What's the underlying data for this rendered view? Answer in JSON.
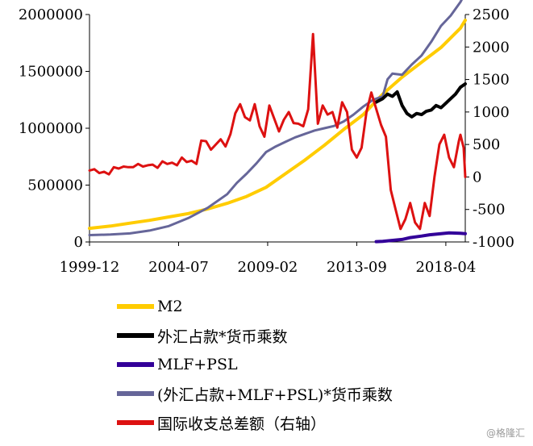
{
  "chart_data": {
    "type": "line",
    "x_ticks": [
      "1999-12",
      "2004-07",
      "2009-02",
      "2013-09",
      "2018-04"
    ],
    "x_range": [
      "1999-12",
      "2019-04"
    ],
    "y_left": {
      "range": [
        0,
        2000000
      ],
      "ticks": [
        "0",
        "500000",
        "1000000",
        "1500000",
        "2000000"
      ]
    },
    "y_right": {
      "range": [
        -1000,
        2500
      ],
      "ticks": [
        "-1000",
        "-500",
        "0",
        "500",
        "1000",
        "1500",
        "2000",
        "2500"
      ]
    },
    "grid": false,
    "legend_position": "bottom",
    "series": [
      {
        "name": "M2",
        "color": "#FFCC00",
        "axis": "left",
        "x": [
          "1999-12",
          "2001-01",
          "2002-01",
          "2003-01",
          "2004-01",
          "2005-01",
          "2006-01",
          "2007-01",
          "2008-01",
          "2009-01",
          "2010-01",
          "2011-01",
          "2012-01",
          "2013-01",
          "2014-01",
          "2015-01",
          "2016-01",
          "2017-01",
          "2018-01",
          "2019-01",
          "2019-04"
        ],
        "values": [
          120000,
          140000,
          165000,
          190000,
          220000,
          250000,
          290000,
          340000,
          400000,
          480000,
          600000,
          720000,
          850000,
          990000,
          1120000,
          1300000,
          1450000,
          1580000,
          1710000,
          1880000,
          1950000
        ]
      },
      {
        "name": "外汇占款*货币乘数",
        "color": "#000000",
        "axis": "left",
        "x": [
          "2014-09",
          "2015-01",
          "2015-04",
          "2015-07",
          "2015-10",
          "2016-01",
          "2016-04",
          "2016-07",
          "2016-10",
          "2017-01",
          "2017-04",
          "2017-07",
          "2017-10",
          "2018-01",
          "2018-04",
          "2018-07",
          "2018-10",
          "2019-01",
          "2019-04"
        ],
        "values": [
          1230000,
          1260000,
          1300000,
          1280000,
          1320000,
          1200000,
          1130000,
          1100000,
          1130000,
          1120000,
          1150000,
          1160000,
          1200000,
          1180000,
          1220000,
          1260000,
          1300000,
          1360000,
          1390000
        ]
      },
      {
        "name": "MLF+PSL",
        "color": "#330099",
        "axis": "left",
        "x": [
          "2014-09",
          "2015-01",
          "2015-06",
          "2016-01",
          "2016-06",
          "2017-01",
          "2017-06",
          "2018-01",
          "2018-06",
          "2019-01",
          "2019-04"
        ],
        "values": [
          3000,
          6000,
          12000,
          22000,
          38000,
          52000,
          63000,
          72000,
          80000,
          76000,
          73000
        ]
      },
      {
        "name": "(外汇占款+MLF+PSL)*货币乘数",
        "color": "#666699",
        "axis": "left",
        "x": [
          "1999-12",
          "2001-01",
          "2002-01",
          "2003-01",
          "2004-01",
          "2005-01",
          "2006-01",
          "2007-01",
          "2007-07",
          "2008-01",
          "2008-07",
          "2009-01",
          "2009-07",
          "2010-01",
          "2010-07",
          "2011-01",
          "2011-07",
          "2012-01",
          "2012-07",
          "2013-01",
          "2013-07",
          "2014-01",
          "2014-07",
          "2015-01",
          "2015-04",
          "2015-07",
          "2016-01",
          "2016-07",
          "2017-01",
          "2017-07",
          "2018-01",
          "2018-07",
          "2019-01",
          "2019-04"
        ],
        "values": [
          60000,
          65000,
          75000,
          100000,
          140000,
          210000,
          300000,
          420000,
          520000,
          600000,
          690000,
          790000,
          840000,
          880000,
          920000,
          950000,
          980000,
          1000000,
          1020000,
          1060000,
          1120000,
          1190000,
          1250000,
          1280000,
          1430000,
          1480000,
          1470000,
          1560000,
          1640000,
          1760000,
          1900000,
          1990000,
          2110000,
          2190000
        ]
      },
      {
        "name": "国际收支总差额（右轴）",
        "color": "#DD1111",
        "axis": "right",
        "x": [
          "1999-12",
          "2000-03",
          "2000-06",
          "2000-09",
          "2000-12",
          "2001-03",
          "2001-06",
          "2001-09",
          "2001-12",
          "2002-03",
          "2002-06",
          "2002-09",
          "2002-12",
          "2003-03",
          "2003-06",
          "2003-09",
          "2003-12",
          "2004-03",
          "2004-06",
          "2004-09",
          "2004-12",
          "2005-03",
          "2005-06",
          "2005-09",
          "2005-12",
          "2006-03",
          "2006-06",
          "2006-09",
          "2006-12",
          "2007-03",
          "2007-06",
          "2007-09",
          "2007-12",
          "2008-03",
          "2008-06",
          "2008-09",
          "2008-12",
          "2009-03",
          "2009-06",
          "2009-09",
          "2009-12",
          "2010-03",
          "2010-06",
          "2010-09",
          "2010-12",
          "2011-03",
          "2011-06",
          "2011-09",
          "2011-12",
          "2012-03",
          "2012-06",
          "2012-09",
          "2012-12",
          "2013-03",
          "2013-06",
          "2013-09",
          "2013-12",
          "2014-03",
          "2014-06",
          "2014-09",
          "2014-12",
          "2015-03",
          "2015-06",
          "2015-09",
          "2015-12",
          "2016-03",
          "2016-06",
          "2016-09",
          "2016-12",
          "2017-03",
          "2017-06",
          "2017-09",
          "2017-12",
          "2018-03",
          "2018-06",
          "2018-09",
          "2018-12",
          "2019-01",
          "2019-03",
          "2019-04"
        ],
        "values": [
          100,
          120,
          60,
          80,
          40,
          150,
          130,
          160,
          150,
          150,
          200,
          160,
          180,
          190,
          140,
          240,
          200,
          220,
          180,
          300,
          230,
          250,
          200,
          560,
          550,
          420,
          500,
          580,
          470,
          660,
          980,
          1120,
          920,
          870,
          1120,
          780,
          620,
          1100,
          900,
          700,
          880,
          1000,
          830,
          820,
          780,
          1040,
          2200,
          820,
          1100,
          960,
          1000,
          760,
          1150,
          1000,
          420,
          300,
          450,
          1000,
          1300,
          1050,
          800,
          620,
          -200,
          -500,
          -800,
          -650,
          -400,
          -700,
          -800,
          -400,
          -600,
          0,
          500,
          650,
          300,
          150,
          550,
          650,
          450,
          0
        ]
      }
    ]
  },
  "watermark": "@格隆汇"
}
